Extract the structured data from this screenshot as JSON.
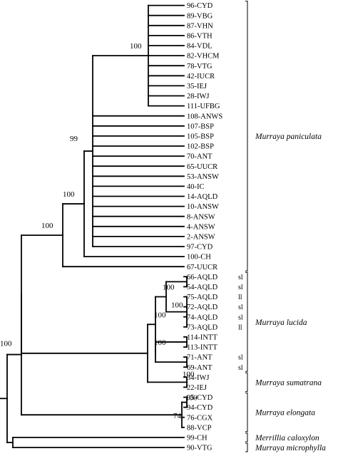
{
  "leaves": [
    {
      "label": "96-CYD"
    },
    {
      "label": "89-VBG"
    },
    {
      "label": "87-VHN"
    },
    {
      "label": "86-VTH"
    },
    {
      "label": "84-VDL"
    },
    {
      "label": "82-VHCM"
    },
    {
      "label": "78-VTG"
    },
    {
      "label": "42-IUCR"
    },
    {
      "label": "35-IEJ"
    },
    {
      "label": "28-IWJ"
    },
    {
      "label": "111-UFBG"
    },
    {
      "label": "108-ANWS"
    },
    {
      "label": "107-BSP"
    },
    {
      "label": "105-BSP"
    },
    {
      "label": "102-BSP"
    },
    {
      "label": "70-ANT"
    },
    {
      "label": "65-UUCR"
    },
    {
      "label": "53-ANSW"
    },
    {
      "label": "40-IC"
    },
    {
      "label": "14-AQLD"
    },
    {
      "label": "10-ANSW"
    },
    {
      "label": "8-ANSW"
    },
    {
      "label": "4-ANSW"
    },
    {
      "label": "2-ANSW"
    },
    {
      "label": "97-CYD"
    },
    {
      "label": "100-CH"
    },
    {
      "label": "67-UUCR"
    },
    {
      "label": "66-AQLD",
      "tag": "sl"
    },
    {
      "label": "54-AQLD",
      "tag": "sl"
    },
    {
      "label": "75-AQLD",
      "tag": "ll"
    },
    {
      "label": "72-AQLD",
      "tag": "sl"
    },
    {
      "label": "74-AQLD",
      "tag": "sl"
    },
    {
      "label": "73-AQLD",
      "tag": "ll"
    },
    {
      "label": "114-INTT"
    },
    {
      "label": "113-INTT"
    },
    {
      "label": "71-ANT",
      "tag": "sl"
    },
    {
      "label": "69-ANT",
      "tag": "sl"
    },
    {
      "label": "34-IWJ"
    },
    {
      "label": "22-IEJ"
    },
    {
      "label": "95-CYD"
    },
    {
      "label": "94-CYD"
    },
    {
      "label": "76-CGX"
    },
    {
      "label": "88-VCP"
    },
    {
      "label": "99-CH"
    },
    {
      "label": "90-VTG"
    }
  ],
  "clades": [
    {
      "name": "Murraya paniculata",
      "from": 0,
      "to": 26
    },
    {
      "name": "Murraya lucida",
      "from": 27,
      "to": 36
    },
    {
      "name": "Murraya sumatrana",
      "from": 37,
      "to": 38
    },
    {
      "name": "Murraya elongata",
      "from": 39,
      "to": 42
    },
    {
      "name": "Merrillia caloxylon",
      "from": 43,
      "to": 43
    },
    {
      "name": "Murraya microphylla",
      "from": 44,
      "to": 44
    }
  ],
  "tree": {
    "c": [
      {
        "s": "100",
        "c": [
          {
            "c": [
              {
                "s": "100",
                "c": [
                  {
                    "s": "100",
                    "c": [
                      {
                        "s": "99",
                        "c": [
                          {
                            "s": "100",
                            "c": [
                              0,
                              1,
                              2,
                              3,
                              4,
                              5,
                              6,
                              7,
                              8,
                              9,
                              10
                            ]
                          },
                          11,
                          12,
                          13,
                          14,
                          15,
                          16,
                          17,
                          18,
                          19,
                          20,
                          21,
                          22,
                          23,
                          24
                        ]
                      },
                      25
                    ]
                  },
                  26
                ]
              },
              {
                "c": [
                  {
                    "s": "100",
                    "c": [
                      {
                        "s": "100",
                        "c": [
                          {
                            "c": [
                              27,
                              28
                            ]
                          },
                          {
                            "s": "100",
                            "c": [
                              29,
                              30,
                              31,
                              32
                            ]
                          }
                        ]
                      },
                      {
                        "s": "100",
                        "c": [
                          {
                            "c": [
                              33,
                              34
                            ]
                          },
                          {
                            "c": [
                              35,
                              36
                            ]
                          }
                        ]
                      }
                    ]
                  },
                  {
                    "s": "100",
                    "c": [
                      37,
                      38
                    ]
                  }
                ]
              }
            ]
          },
          {
            "s": "74",
            "c": [
              {
                "s": "100",
                "c": [
                  39,
                  40
                ]
              },
              41,
              42
            ]
          }
        ]
      },
      {
        "c": [
          43,
          44
        ]
      }
    ]
  }
}
